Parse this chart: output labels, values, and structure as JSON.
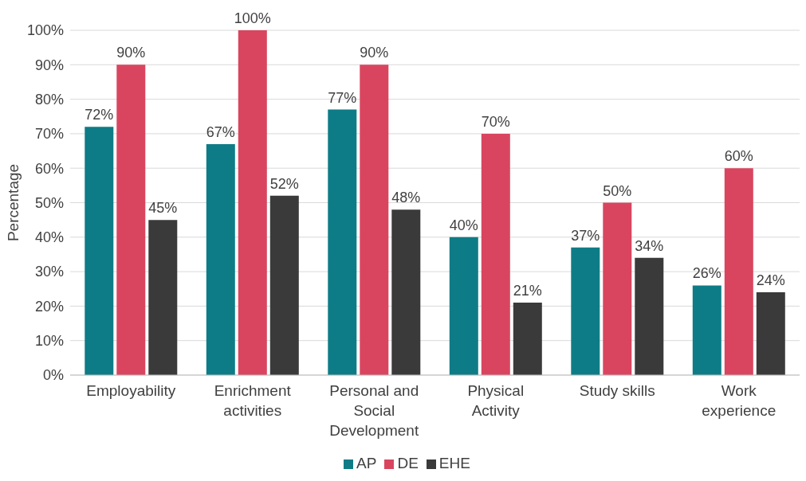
{
  "chart_data": {
    "type": "bar",
    "ylabel": "Percentage",
    "categories": [
      "Employability",
      "Enrichment activities",
      "Personal and Social Development",
      "Physical Activity",
      "Study skills",
      "Work experience"
    ],
    "series": [
      {
        "name": "AP",
        "color": "#0e7c86",
        "values": [
          72,
          67,
          77,
          40,
          37,
          26
        ],
        "value_labels": [
          "72%",
          "67%",
          "77%",
          "40%",
          "37%",
          "26%"
        ]
      },
      {
        "name": "DE",
        "color": "#d9455f",
        "values": [
          90,
          100,
          90,
          70,
          50,
          60
        ],
        "value_labels": [
          "90%",
          "100%",
          "90%",
          "70%",
          "50%",
          "60%"
        ]
      },
      {
        "name": "EHE",
        "color": "#3a3a3a",
        "values": [
          45,
          52,
          48,
          21,
          34,
          24
        ],
        "value_labels": [
          "45%",
          "52%",
          "48%",
          "21%",
          "34%",
          "24%"
        ]
      }
    ],
    "ylim": [
      0,
      100
    ],
    "yticks": [
      {
        "value": 0,
        "label": "0%"
      },
      {
        "value": 10,
        "label": "10%"
      },
      {
        "value": 20,
        "label": "20%"
      },
      {
        "value": 30,
        "label": "30%"
      },
      {
        "value": 40,
        "label": "40%"
      },
      {
        "value": 50,
        "label": "50%"
      },
      {
        "value": 60,
        "label": "60%"
      },
      {
        "value": 70,
        "label": "70%"
      },
      {
        "value": 80,
        "label": "80%"
      },
      {
        "value": 90,
        "label": "90%"
      },
      {
        "value": 100,
        "label": "100%"
      }
    ],
    "grid": "y",
    "legend": "bottom"
  }
}
